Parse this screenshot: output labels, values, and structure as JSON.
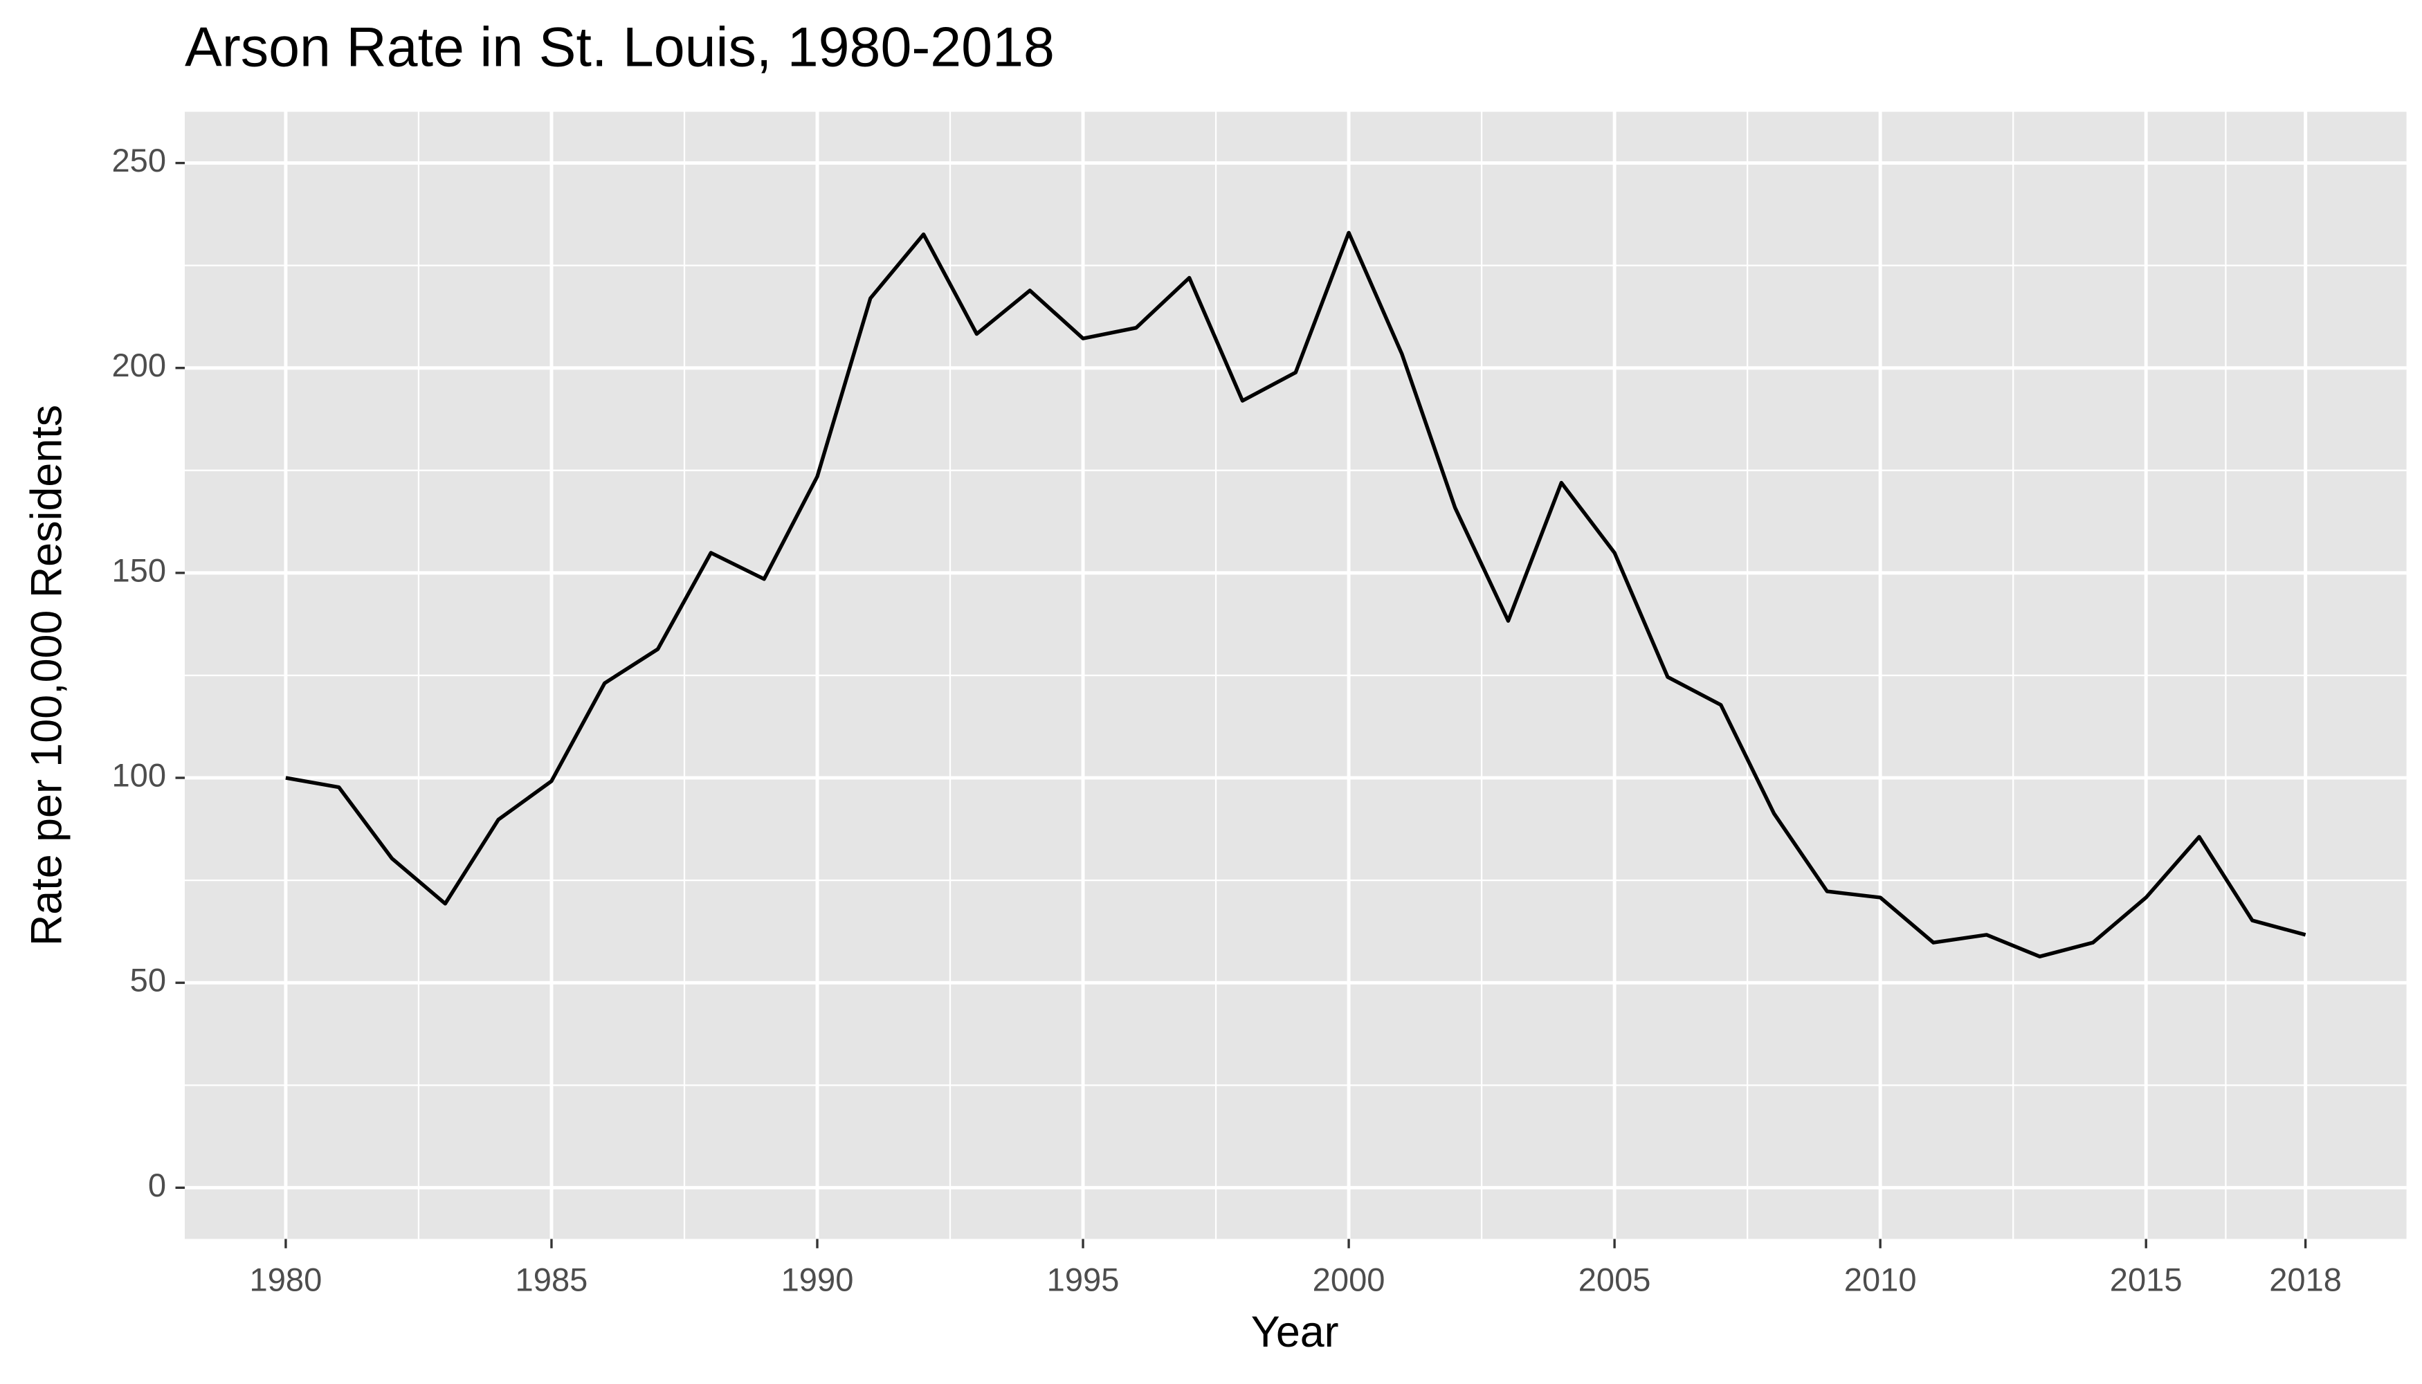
{
  "chart_data": {
    "type": "line",
    "title": "Arson Rate in St. Louis, 1980-2018",
    "x_label": "Year",
    "y_label": "Rate per 100,000 Residents",
    "x": [
      1980,
      1981,
      1982,
      1983,
      1984,
      1985,
      1986,
      1987,
      1988,
      1989,
      1990,
      1991,
      1992,
      1993,
      1994,
      1995,
      1996,
      1997,
      1998,
      1999,
      2000,
      2001,
      2002,
      2003,
      2004,
      2005,
      2006,
      2007,
      2008,
      2009,
      2010,
      2011,
      2012,
      2013,
      2014,
      2015,
      2016,
      2017,
      2018
    ],
    "series": [
      {
        "color": "#000000",
        "values": [
          100,
          97.7,
          80.3,
          69.3,
          89.8,
          99.2,
          123.1,
          131.4,
          154.9,
          148.5,
          173.5,
          217,
          232.6,
          208.3,
          218.9,
          207.2,
          209.8,
          222,
          192,
          198.9,
          233,
          203.4,
          165.9,
          138.3,
          172,
          154.9,
          124.6,
          117.8,
          91.3,
          72.3,
          70.8,
          59.8,
          61.7,
          56.4,
          59.8,
          70.8,
          85.6,
          65.2,
          61.7
        ]
      }
    ],
    "xlim": [
      1978.1,
      2019.9
    ],
    "ylim": [
      -12.5,
      262.5
    ],
    "xticks": [
      1980,
      1985,
      1990,
      1995,
      2000,
      2005,
      2010,
      2015,
      2018
    ],
    "yticks": [
      0,
      50,
      100,
      150,
      200,
      250
    ],
    "grid": true
  }
}
